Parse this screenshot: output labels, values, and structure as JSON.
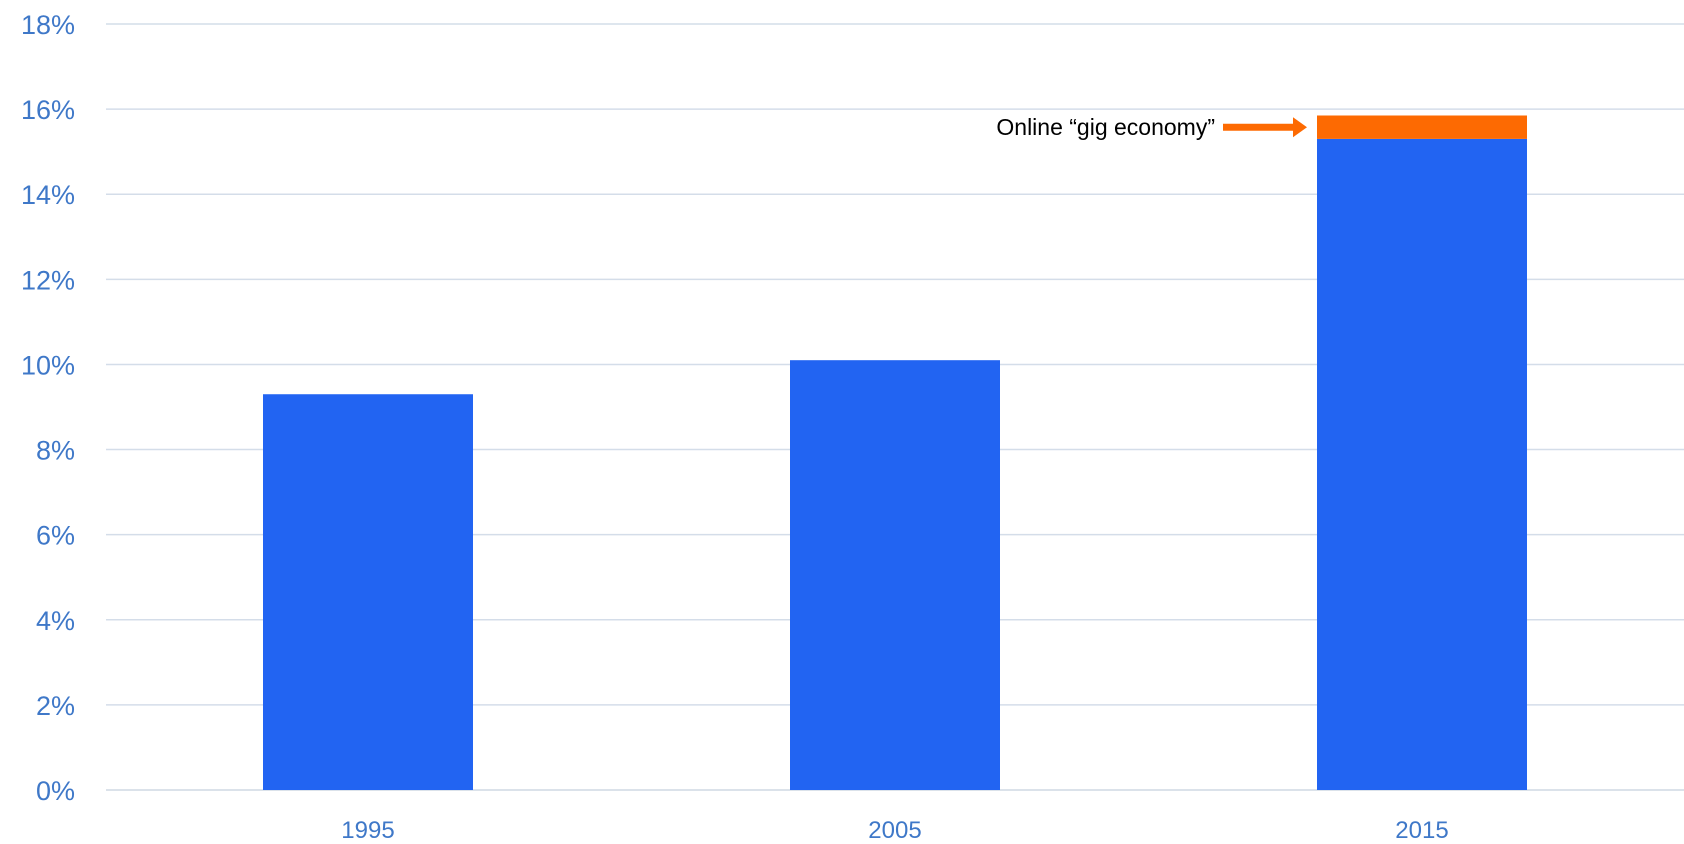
{
  "chart_data": {
    "type": "bar",
    "stacked": true,
    "title": "",
    "xlabel": "",
    "ylabel": "",
    "categories": [
      "1995",
      "2005",
      "2015"
    ],
    "series": [
      {
        "values": [
          9.3,
          10.1,
          15.3
        ],
        "color": "#2264f2"
      },
      {
        "values": [
          0,
          0,
          0.55
        ],
        "color": "#fd6a02"
      }
    ],
    "ylim": [
      0,
      18
    ],
    "y_ticks": [
      0,
      2,
      4,
      6,
      8,
      10,
      12,
      14,
      16,
      18
    ],
    "y_tick_labels": [
      "0%",
      "2%",
      "4%",
      "6%",
      "8%",
      "10%",
      "12%",
      "14%",
      "16%",
      "18%"
    ],
    "grid": true,
    "legend": "none",
    "annotation": {
      "text": "Online “gig economy”",
      "target_category": "2015",
      "target_series": 1,
      "arrow_color": "#fd6a02"
    }
  }
}
